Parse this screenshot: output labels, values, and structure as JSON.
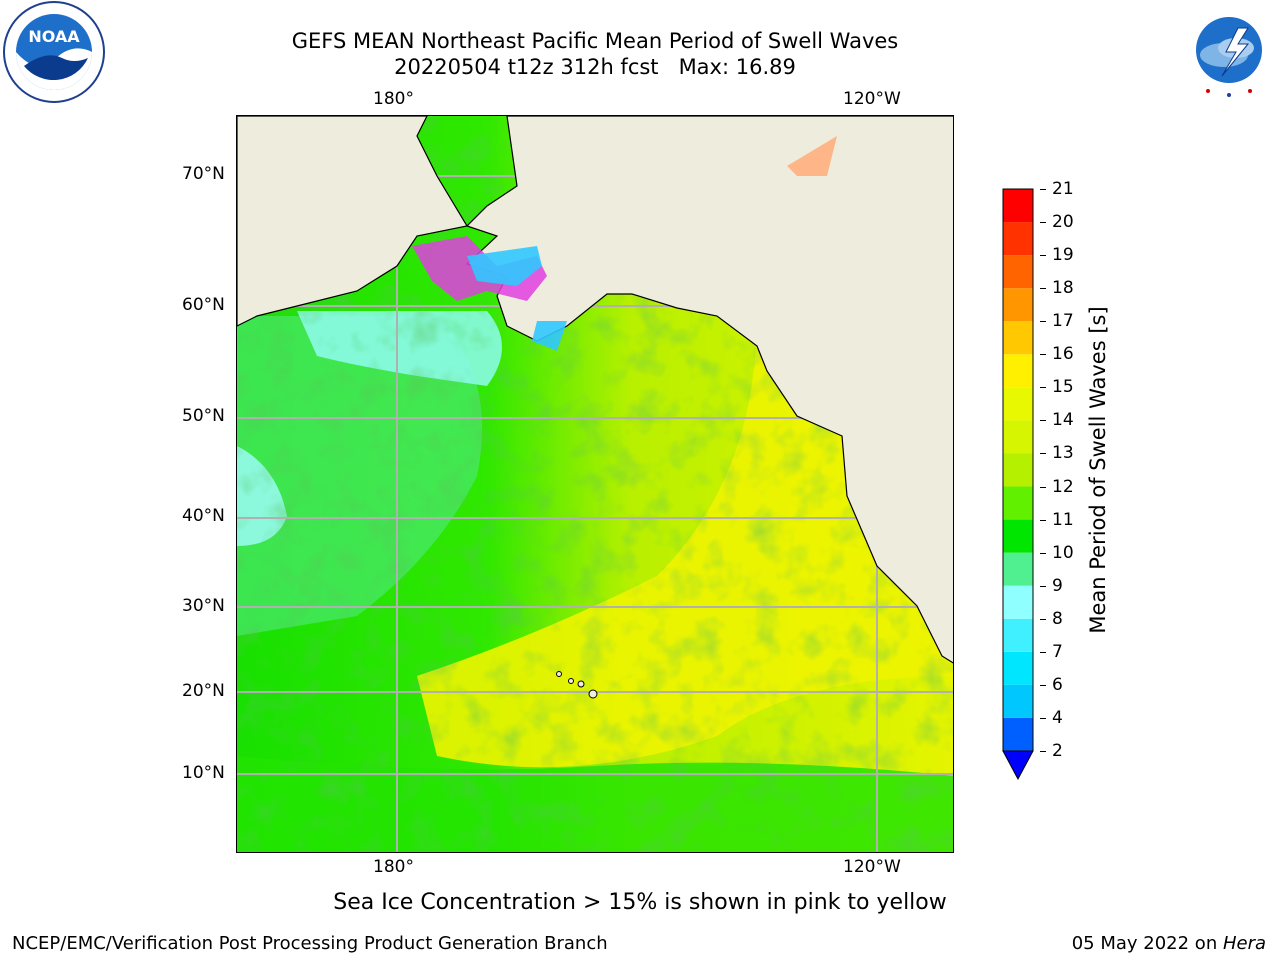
{
  "header": {
    "title_line1": "GEFS MEAN Northeast Pacific Mean Period of Swell Waves",
    "title_line2": "20220504 t12z 312h fcst   Max: 16.89"
  },
  "logos": {
    "left": {
      "name": "NOAA",
      "ring_text": "NATIONAL OCEANIC AND ATMOSPHERIC ADMINISTRATION",
      "bottom_text": "U.S. DEPARTMENT OF COMMERCE"
    },
    "right": {
      "ring_text": "NATIONAL WEATHER SERVICE"
    }
  },
  "map": {
    "lon_labels_top": [
      "180°",
      "120°W"
    ],
    "lon_labels_bottom": [
      "180°",
      "120°W"
    ],
    "lat_labels": [
      "70°N",
      "60°N",
      "50°N",
      "40°N",
      "30°N",
      "20°N",
      "10°N"
    ],
    "colors": {
      "land": "#eeecdc",
      "coast": "#000000",
      "grid": "#b0b0b0"
    }
  },
  "colorbar": {
    "label": "Mean Period of Swell Waves [s]",
    "ticks": [
      "2",
      "4",
      "6",
      "7",
      "8",
      "9",
      "10",
      "11",
      "12",
      "13",
      "14",
      "15",
      "16",
      "17",
      "18",
      "19",
      "20",
      "21"
    ],
    "bin_colors": [
      "#0060ff",
      "#00c8ff",
      "#00e6ff",
      "#40f0ff",
      "#90ffff",
      "#50f090",
      "#00e600",
      "#60f000",
      "#b4f000",
      "#d6f500",
      "#e8f800",
      "#fff000",
      "#ffc800",
      "#ff9600",
      "#ff6400",
      "#ff3200",
      "#ff0000"
    ],
    "under_color": "#0000ff"
  },
  "notes": {
    "sea_ice": "Sea Ice Concentration > 15% is shown in pink to yellow"
  },
  "footer": {
    "left": "NCEP/EMC/Verification Post Processing Product Generation Branch",
    "right_date": "05 May 2022 on ",
    "right_host": "Hera"
  }
}
